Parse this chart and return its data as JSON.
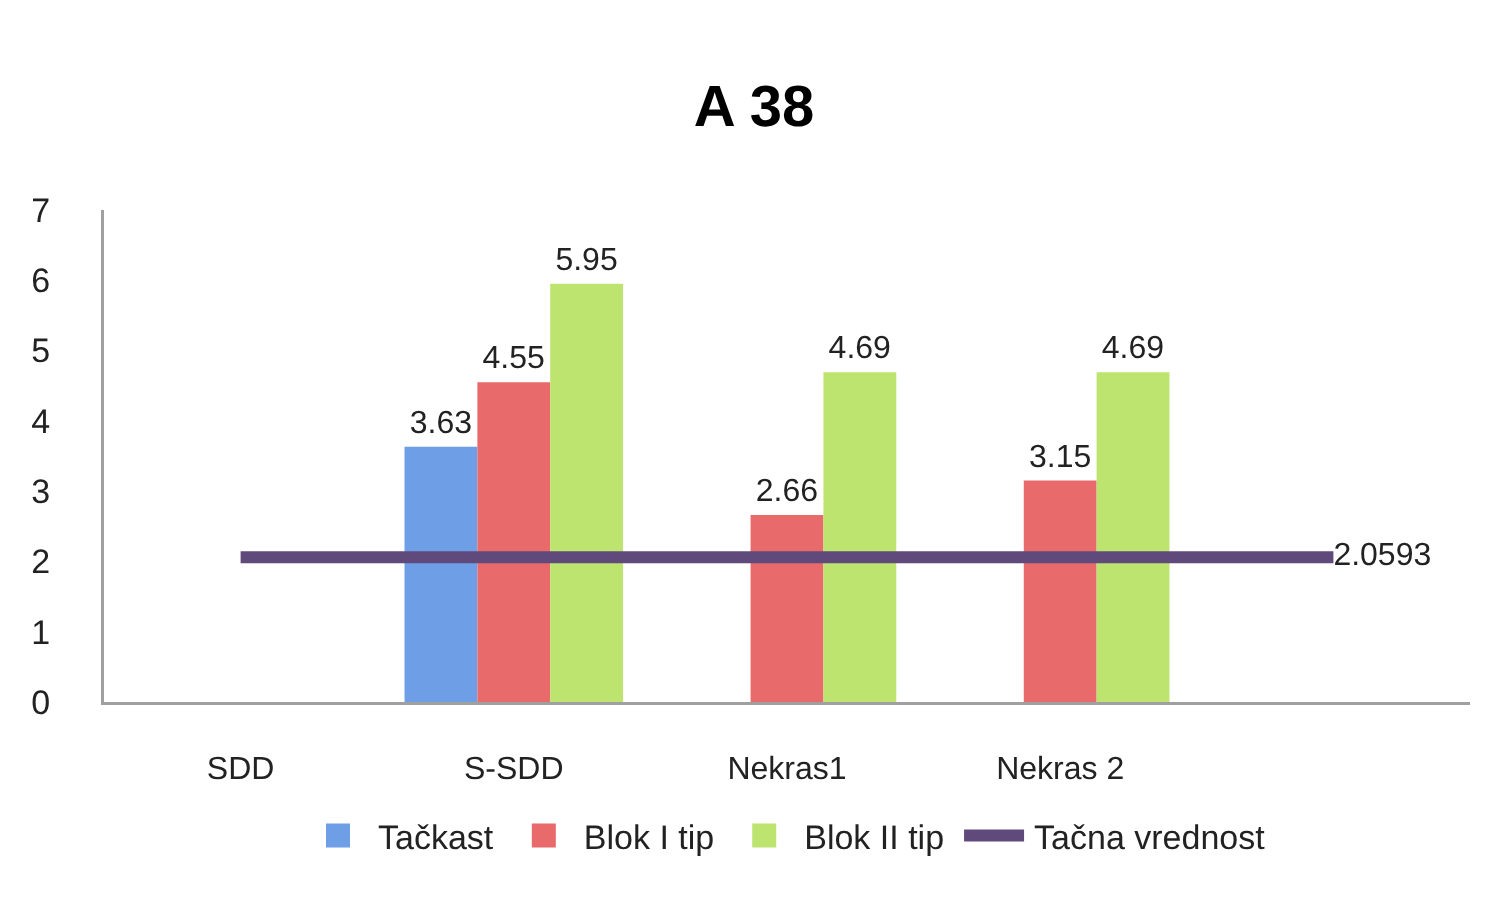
{
  "chart_data": {
    "type": "bar",
    "title": "A 38",
    "categories": [
      "SDD",
      "S-SDD",
      "Nekras1",
      "Nekras 2",
      null
    ],
    "series": [
      {
        "name": "Tačkast",
        "color": "#6d9ee6",
        "values": [
          null,
          3.63,
          null,
          null,
          null
        ],
        "value_labels": [
          null,
          "3.63",
          null,
          null,
          null
        ]
      },
      {
        "name": "Blok I tip",
        "color": "#e86a6a",
        "values": [
          null,
          4.55,
          2.66,
          3.15,
          null
        ],
        "value_labels": [
          null,
          "4.55",
          "2.66",
          "3.15",
          null
        ]
      },
      {
        "name": "Blok II tip",
        "color": "#bde46f",
        "values": [
          null,
          5.95,
          4.69,
          4.69,
          null
        ],
        "value_labels": [
          null,
          "5.95",
          "4.69",
          "4.69",
          null
        ]
      },
      {
        "name": "Tačna vrednost",
        "type": "line",
        "color": "#604a7b",
        "values": [
          2.0593,
          2.0593,
          2.0593,
          2.0593,
          2.0593
        ],
        "value_labels": [
          null,
          null,
          null,
          null,
          "2.0593"
        ]
      }
    ],
    "ylim": [
      0,
      7
    ],
    "yticks": [
      0,
      1,
      2,
      3,
      4,
      5,
      6,
      7
    ],
    "legend": "bottom",
    "marker": "none",
    "line_style": "solid"
  }
}
